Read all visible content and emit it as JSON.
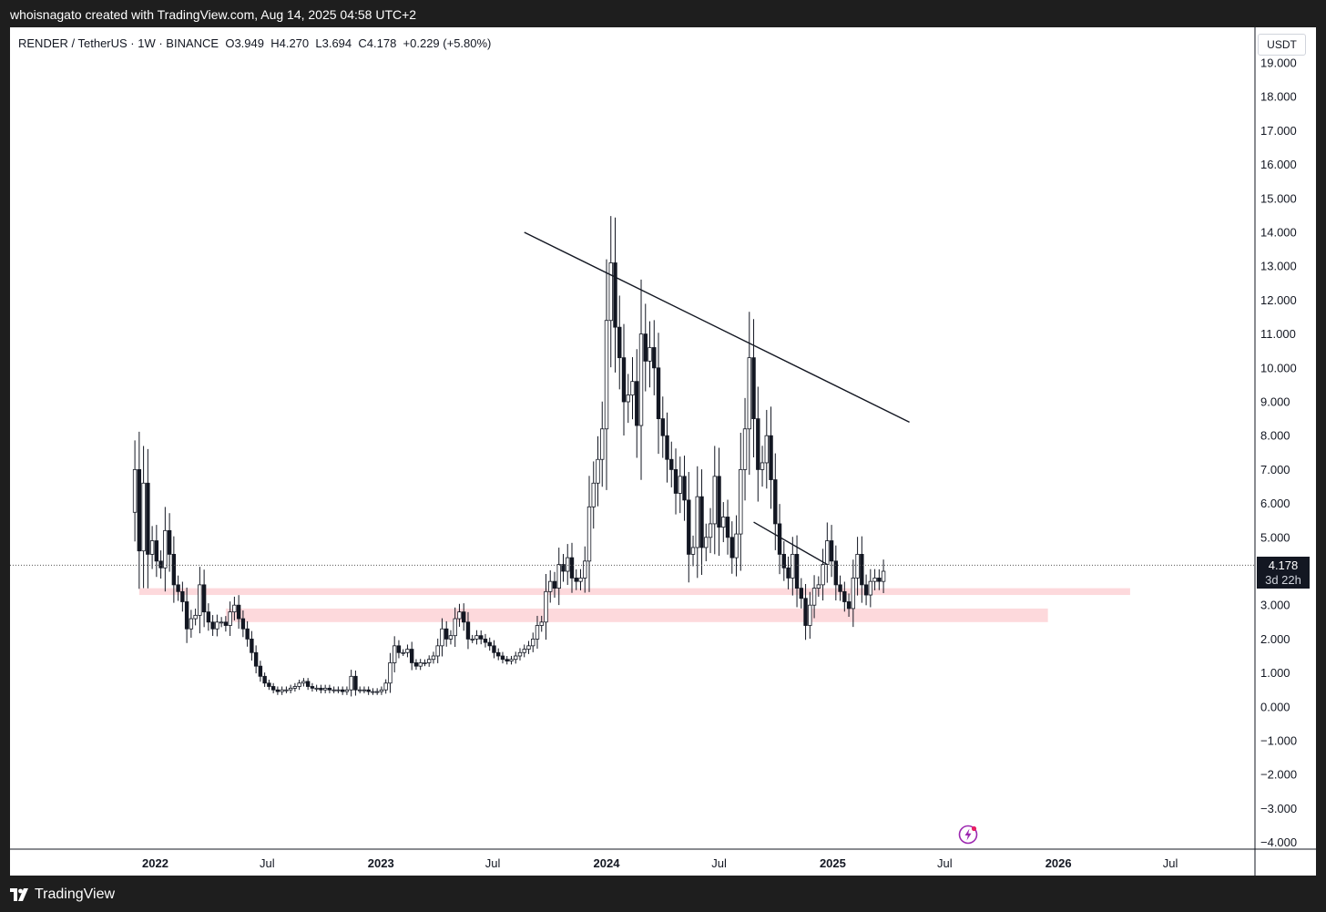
{
  "header": {
    "caption": "whoisnagato created with TradingView.com, Aug 14, 2025 04:58 UTC+2"
  },
  "footer": {
    "brand": "TradingView"
  },
  "legend": {
    "symbol": "RENDER / TetherUS · 1W · BINANCE",
    "open": "O3.949",
    "high": "H4.270",
    "low": "L3.694",
    "close": "C4.178",
    "change": "+0.229 (+5.80%)"
  },
  "currency_button": "USDT",
  "last_price": {
    "value": "4.178",
    "countdown": "3d 22h"
  },
  "colors": {
    "candle_body": "#ffffff",
    "candle_edge": "#131722",
    "zone": "#fdd9dc",
    "price_line": "#555555",
    "accent_alert": "#e91e63"
  },
  "icons": {
    "alert": "lightning-alert-icon",
    "logo": "tradingview-logo-icon"
  },
  "chart_data": {
    "type": "candlestick",
    "title": "RENDER / TetherUS · 1W · BINANCE",
    "timeframe": "1W",
    "ylim": [
      -4.0,
      19.0
    ],
    "y_ticks": [
      "19.000",
      "18.000",
      "17.000",
      "16.000",
      "15.000",
      "14.000",
      "13.000",
      "12.000",
      "11.000",
      "10.000",
      "9.000",
      "8.000",
      "7.000",
      "6.000",
      "5.000",
      "4.000",
      "3.000",
      "2.000",
      "1.000",
      "0.000",
      "−1.000",
      "−2.000",
      "−3.000",
      "−4.000"
    ],
    "y_tick_values": [
      19,
      18,
      17,
      16,
      15,
      14,
      13,
      12,
      11,
      10,
      9,
      8,
      7,
      6,
      5,
      4,
      3,
      2,
      1,
      0,
      -1,
      -2,
      -3,
      -4
    ],
    "x_ticks": [
      {
        "label": "2022",
        "date": "2022-01-01",
        "bold": true
      },
      {
        "label": "Jul",
        "date": "2022-07-01",
        "bold": false
      },
      {
        "label": "2023",
        "date": "2023-01-01",
        "bold": true
      },
      {
        "label": "Jul",
        "date": "2023-07-01",
        "bold": false
      },
      {
        "label": "2024",
        "date": "2024-01-01",
        "bold": true
      },
      {
        "label": "Jul",
        "date": "2024-07-01",
        "bold": false
      },
      {
        "label": "2025",
        "date": "2025-01-01",
        "bold": true
      },
      {
        "label": "Jul",
        "date": "2025-07-01",
        "bold": false
      },
      {
        "label": "2026",
        "date": "2026-01-01",
        "bold": true
      },
      {
        "label": "Jul",
        "date": "2026-07-01",
        "bold": false
      }
    ],
    "last_close": 4.178,
    "price_path": [
      [
        "2021-11-29",
        7.0
      ],
      [
        "2021-12-06",
        4.6
      ],
      [
        "2021-12-13",
        6.6
      ],
      [
        "2021-12-20",
        4.5
      ],
      [
        "2021-12-27",
        4.9
      ],
      [
        "2022-01-03",
        4.3
      ],
      [
        "2022-01-10",
        4.1
      ],
      [
        "2022-01-17",
        5.2
      ],
      [
        "2022-01-24",
        4.5
      ],
      [
        "2022-01-31",
        3.6
      ],
      [
        "2022-02-07",
        3.4
      ],
      [
        "2022-02-14",
        3.1
      ],
      [
        "2022-02-21",
        2.3
      ],
      [
        "2022-02-28",
        2.6
      ],
      [
        "2022-03-07",
        2.7
      ],
      [
        "2022-03-14",
        3.6
      ],
      [
        "2022-03-21",
        2.8
      ],
      [
        "2022-03-28",
        2.5
      ],
      [
        "2022-04-04",
        2.3
      ],
      [
        "2022-04-11",
        2.5
      ],
      [
        "2022-04-18",
        2.5
      ],
      [
        "2022-04-25",
        2.4
      ],
      [
        "2022-05-02",
        2.8
      ],
      [
        "2022-05-09",
        3.0
      ],
      [
        "2022-05-16",
        2.6
      ],
      [
        "2022-05-23",
        2.3
      ],
      [
        "2022-05-30",
        2.0
      ],
      [
        "2022-06-06",
        1.6
      ],
      [
        "2022-06-13",
        1.2
      ],
      [
        "2022-06-20",
        0.9
      ],
      [
        "2022-06-27",
        0.7
      ],
      [
        "2022-07-04",
        0.6
      ],
      [
        "2022-07-11",
        0.5
      ],
      [
        "2022-07-18",
        0.45
      ],
      [
        "2022-07-25",
        0.5
      ],
      [
        "2022-08-01",
        0.5
      ],
      [
        "2022-08-08",
        0.55
      ],
      [
        "2022-08-15",
        0.6
      ],
      [
        "2022-08-22",
        0.7
      ],
      [
        "2022-08-29",
        0.75
      ],
      [
        "2022-09-05",
        0.6
      ],
      [
        "2022-09-12",
        0.55
      ],
      [
        "2022-09-19",
        0.55
      ],
      [
        "2022-09-26",
        0.5
      ],
      [
        "2022-10-03",
        0.55
      ],
      [
        "2022-10-10",
        0.5
      ],
      [
        "2022-10-17",
        0.5
      ],
      [
        "2022-10-24",
        0.5
      ],
      [
        "2022-10-31",
        0.45
      ],
      [
        "2022-11-07",
        0.5
      ],
      [
        "2022-11-14",
        0.9
      ],
      [
        "2022-11-21",
        0.5
      ],
      [
        "2022-11-28",
        0.5
      ],
      [
        "2022-12-05",
        0.5
      ],
      [
        "2022-12-12",
        0.45
      ],
      [
        "2022-12-19",
        0.45
      ],
      [
        "2022-12-26",
        0.45
      ],
      [
        "2023-01-02",
        0.5
      ],
      [
        "2023-01-09",
        0.7
      ],
      [
        "2023-01-16",
        1.3
      ],
      [
        "2023-01-23",
        1.8
      ],
      [
        "2023-01-30",
        1.6
      ],
      [
        "2023-02-06",
        1.6
      ],
      [
        "2023-02-13",
        1.7
      ],
      [
        "2023-02-20",
        1.3
      ],
      [
        "2023-02-27",
        1.2
      ],
      [
        "2023-03-06",
        1.3
      ],
      [
        "2023-03-13",
        1.3
      ],
      [
        "2023-03-20",
        1.4
      ],
      [
        "2023-03-27",
        1.5
      ],
      [
        "2023-04-03",
        1.8
      ],
      [
        "2023-04-10",
        2.3
      ],
      [
        "2023-04-17",
        2.0
      ],
      [
        "2023-04-24",
        2.1
      ],
      [
        "2023-05-01",
        2.6
      ],
      [
        "2023-05-08",
        2.8
      ],
      [
        "2023-05-15",
        2.5
      ],
      [
        "2023-05-22",
        2.0
      ],
      [
        "2023-05-29",
        2.0
      ],
      [
        "2023-06-05",
        2.1
      ],
      [
        "2023-06-12",
        2.0
      ],
      [
        "2023-06-19",
        1.9
      ],
      [
        "2023-06-26",
        1.8
      ],
      [
        "2023-07-03",
        1.6
      ],
      [
        "2023-07-10",
        1.5
      ],
      [
        "2023-07-17",
        1.4
      ],
      [
        "2023-07-24",
        1.35
      ],
      [
        "2023-07-31",
        1.4
      ],
      [
        "2023-08-07",
        1.5
      ],
      [
        "2023-08-14",
        1.6
      ],
      [
        "2023-08-21",
        1.7
      ],
      [
        "2023-08-28",
        1.8
      ],
      [
        "2023-09-04",
        2.0
      ],
      [
        "2023-09-11",
        2.4
      ],
      [
        "2023-09-18",
        2.5
      ],
      [
        "2023-09-25",
        3.4
      ],
      [
        "2023-10-02",
        3.7
      ],
      [
        "2023-10-09",
        3.5
      ],
      [
        "2023-10-16",
        4.2
      ],
      [
        "2023-10-23",
        4.0
      ],
      [
        "2023-10-30",
        4.4
      ],
      [
        "2023-11-06",
        3.8
      ],
      [
        "2023-11-13",
        3.7
      ],
      [
        "2023-11-20",
        3.8
      ],
      [
        "2023-11-27",
        4.3
      ],
      [
        "2023-12-04",
        5.9
      ],
      [
        "2023-12-11",
        6.6
      ],
      [
        "2023-12-18",
        7.3
      ],
      [
        "2023-12-25",
        8.2
      ],
      [
        "2024-01-01",
        11.4
      ],
      [
        "2024-01-08",
        13.1
      ],
      [
        "2024-01-15",
        11.2
      ],
      [
        "2024-01-22",
        10.3
      ],
      [
        "2024-01-29",
        9.0
      ],
      [
        "2024-02-05",
        9.2
      ],
      [
        "2024-02-12",
        9.6
      ],
      [
        "2024-02-19",
        8.3
      ],
      [
        "2024-02-26",
        11.0
      ],
      [
        "2024-03-04",
        10.2
      ],
      [
        "2024-03-11",
        10.6
      ],
      [
        "2024-03-18",
        10.0
      ],
      [
        "2024-03-25",
        8.5
      ],
      [
        "2024-04-01",
        8.0
      ],
      [
        "2024-04-08",
        7.3
      ],
      [
        "2024-04-15",
        7.0
      ],
      [
        "2024-04-22",
        6.3
      ],
      [
        "2024-04-29",
        6.8
      ],
      [
        "2024-05-06",
        6.1
      ],
      [
        "2024-05-13",
        4.5
      ],
      [
        "2024-05-20",
        4.7
      ],
      [
        "2024-05-27",
        6.2
      ],
      [
        "2024-06-03",
        4.7
      ],
      [
        "2024-06-10",
        5.0
      ],
      [
        "2024-06-17",
        5.4
      ],
      [
        "2024-06-24",
        6.8
      ],
      [
        "2024-07-01",
        5.3
      ],
      [
        "2024-07-08",
        5.6
      ],
      [
        "2024-07-15",
        5.0
      ],
      [
        "2024-07-22",
        4.4
      ],
      [
        "2024-07-29",
        5.1
      ],
      [
        "2024-08-05",
        7.0
      ],
      [
        "2024-08-12",
        8.2
      ],
      [
        "2024-08-19",
        10.3
      ],
      [
        "2024-08-26",
        8.5
      ],
      [
        "2024-09-02",
        7.0
      ],
      [
        "2024-09-09",
        7.2
      ],
      [
        "2024-09-16",
        8.0
      ],
      [
        "2024-09-23",
        6.7
      ],
      [
        "2024-09-30",
        5.4
      ],
      [
        "2024-10-07",
        4.5
      ],
      [
        "2024-10-14",
        4.1
      ],
      [
        "2024-10-21",
        3.8
      ],
      [
        "2024-10-28",
        4.5
      ],
      [
        "2024-11-04",
        3.5
      ],
      [
        "2024-11-11",
        3.2
      ],
      [
        "2024-11-18",
        2.4
      ],
      [
        "2024-11-25",
        3.0
      ],
      [
        "2024-12-02",
        3.5
      ],
      [
        "2024-12-09",
        3.6
      ],
      [
        "2024-12-16",
        4.2
      ],
      [
        "2024-12-23",
        4.9
      ],
      [
        "2024-12-30",
        4.3
      ],
      [
        "2025-01-06",
        3.6
      ],
      [
        "2025-01-13",
        3.4
      ],
      [
        "2025-01-20",
        3.1
      ],
      [
        "2025-01-27",
        2.9
      ],
      [
        "2025-02-03",
        3.8
      ],
      [
        "2025-02-10",
        4.5
      ],
      [
        "2025-02-17",
        3.6
      ],
      [
        "2025-02-24",
        3.3
      ],
      [
        "2025-03-03",
        3.7
      ],
      [
        "2025-03-10",
        3.8
      ],
      [
        "2025-03-17",
        3.7
      ],
      [
        "2025-03-24",
        4.0
      ]
    ],
    "zones": [
      {
        "from": "2021-12-06",
        "to": "2026-04-27",
        "low": 3.3,
        "high": 3.5
      },
      {
        "from": "2022-04-25",
        "to": "2025-12-15",
        "low": 2.5,
        "high": 2.9
      }
    ],
    "trendlines": [
      {
        "from": [
          "2023-08-21",
          14.0
        ],
        "to": [
          "2025-05-05",
          8.4
        ]
      },
      {
        "from": [
          "2024-08-26",
          5.45
        ],
        "to": [
          "2024-12-23",
          4.2
        ]
      }
    ]
  }
}
